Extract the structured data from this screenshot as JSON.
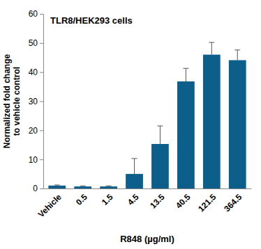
{
  "chart_data": {
    "type": "bar",
    "title": "TLR8/HEK293 cells",
    "xlabel": "R848 (µg/ml)",
    "ylabel": [
      "Normalized fold change",
      "to vehicle control"
    ],
    "categories": [
      "Vehicle",
      "0.5",
      "1.5",
      "4.5",
      "13.5",
      "40.5",
      "121.5",
      "364.5"
    ],
    "values": [
      1.0,
      0.7,
      0.7,
      5.0,
      15.3,
      36.8,
      46.0,
      44.1
    ],
    "errors": [
      0.2,
      0.2,
      0.2,
      5.3,
      6.2,
      4.5,
      4.2,
      3.5
    ],
    "color": "#0b5f8a",
    "ylim": [
      0,
      60
    ],
    "yticks": [
      0,
      10,
      20,
      30,
      40,
      50,
      60
    ],
    "grid": false
  }
}
